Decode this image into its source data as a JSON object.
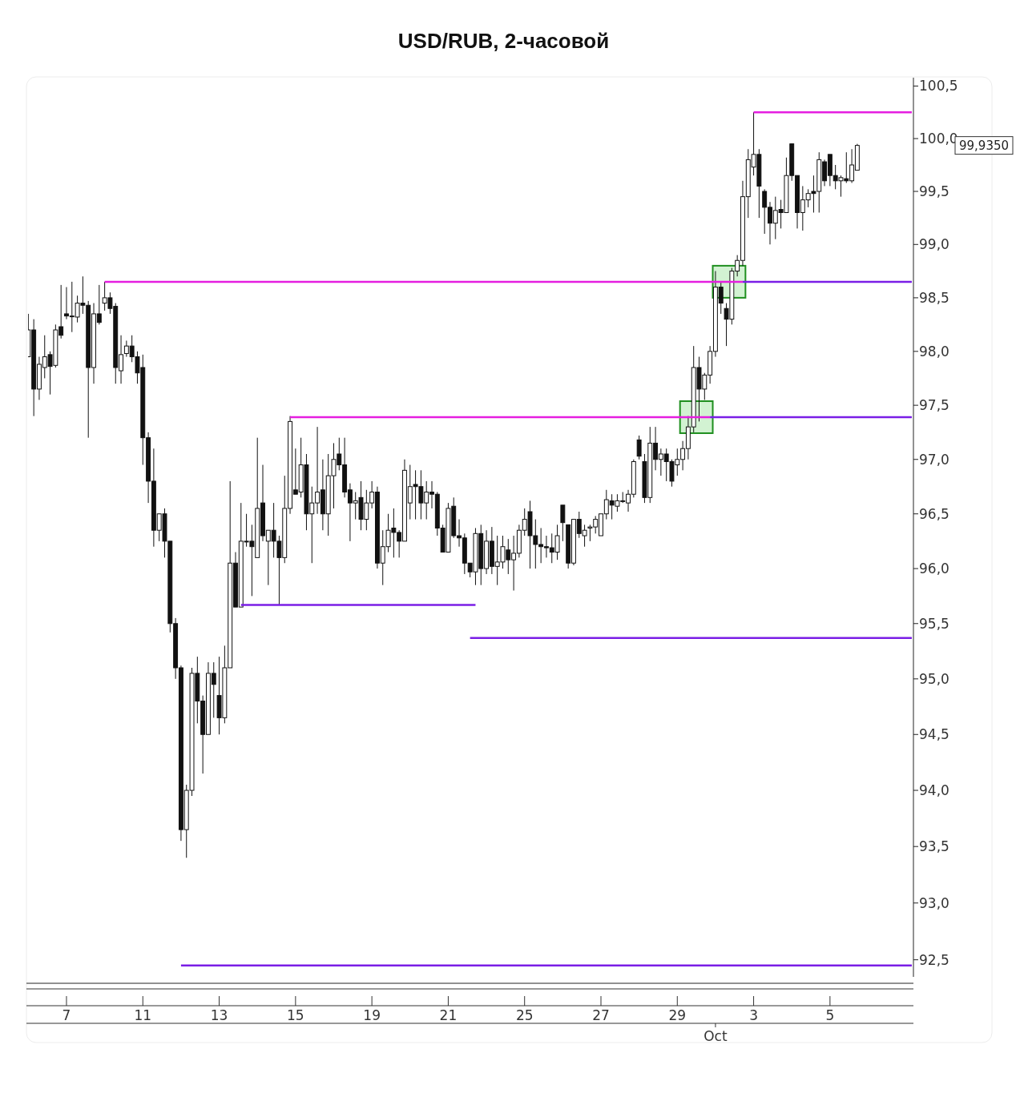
{
  "chart_data": {
    "type": "candlestick",
    "title": "USD/RUB, 2-часовой",
    "categories": [
      null,
      null,
      null,
      null,
      null,
      null,
      null,
      "7",
      null,
      null,
      null,
      null,
      null,
      null,
      null,
      null,
      null,
      null,
      null,
      null,
      null,
      "11",
      null,
      null,
      null,
      null,
      null,
      null,
      null,
      null,
      null,
      null,
      null,
      null,
      null,
      "13",
      null,
      null,
      null,
      null,
      null,
      null,
      null,
      null,
      null,
      null,
      null,
      null,
      null,
      "15",
      null,
      null,
      null,
      null,
      null,
      null,
      null,
      null,
      null,
      null,
      null,
      null,
      null,
      "19",
      null,
      null,
      null,
      null,
      null,
      null,
      null,
      null,
      null,
      null,
      null,
      null,
      null,
      "21",
      null,
      null,
      null,
      null,
      null,
      null,
      null,
      null,
      null,
      null,
      null,
      null,
      null,
      "25",
      null,
      null,
      null,
      null,
      null,
      null,
      null,
      null,
      null,
      null,
      null,
      null,
      null,
      "27",
      null,
      null,
      null,
      null,
      null,
      null,
      null,
      null,
      null,
      null,
      null,
      null,
      null,
      "29",
      null,
      null,
      null,
      null,
      null,
      null,
      null,
      null,
      null,
      null,
      null,
      null,
      null,
      "3",
      null,
      null,
      null,
      null,
      null,
      null,
      null,
      null,
      null,
      null,
      null,
      null,
      null,
      "5",
      null,
      null,
      null,
      null,
      null,
      null,
      null,
      null,
      null,
      null,
      null,
      null,
      null,
      null,
      null
    ],
    "ohlc": [
      [
        97.95,
        98.35,
        97.95,
        98.2
      ],
      [
        98.2,
        98.3,
        97.4,
        97.65
      ],
      [
        97.65,
        97.95,
        97.55,
        97.88
      ],
      [
        97.85,
        98.15,
        97.75,
        97.95
      ],
      [
        97.97,
        98.0,
        97.6,
        97.86
      ],
      [
        97.87,
        98.25,
        97.85,
        98.2
      ],
      [
        98.23,
        98.62,
        98.12,
        98.15
      ],
      [
        98.35,
        98.6,
        98.3,
        98.33
      ],
      [
        98.33,
        98.65,
        98.18,
        98.33
      ],
      [
        98.32,
        98.52,
        98.27,
        98.45
      ],
      [
        98.45,
        98.7,
        98.35,
        98.43
      ],
      [
        98.43,
        98.47,
        97.2,
        97.85
      ],
      [
        97.85,
        98.45,
        97.7,
        98.35
      ],
      [
        98.35,
        98.62,
        98.25,
        98.27
      ],
      [
        98.45,
        98.65,
        98.38,
        98.5
      ],
      [
        98.5,
        98.55,
        98.35,
        98.4
      ],
      [
        98.42,
        98.45,
        97.7,
        97.85
      ],
      [
        97.82,
        98.15,
        97.7,
        97.97
      ],
      [
        97.98,
        98.1,
        97.95,
        98.05
      ],
      [
        98.05,
        98.15,
        97.9,
        97.95
      ],
      [
        97.95,
        98.0,
        97.7,
        97.8
      ],
      [
        97.85,
        97.97,
        96.95,
        97.2
      ],
      [
        97.2,
        97.25,
        96.6,
        96.8
      ],
      [
        96.8,
        97.1,
        96.2,
        96.35
      ],
      [
        96.35,
        96.5,
        96.25,
        96.5
      ],
      [
        96.5,
        96.55,
        96.1,
        96.25
      ],
      [
        96.25,
        96.25,
        95.42,
        95.5
      ],
      [
        95.5,
        95.55,
        95.0,
        95.1
      ],
      [
        95.1,
        95.12,
        93.55,
        93.65
      ],
      [
        93.65,
        94.05,
        93.4,
        94.0
      ],
      [
        94.0,
        95.1,
        93.95,
        95.05
      ],
      [
        95.05,
        95.2,
        94.6,
        94.8
      ],
      [
        94.8,
        94.85,
        94.15,
        94.5
      ],
      [
        94.5,
        95.15,
        94.5,
        95.05
      ],
      [
        95.05,
        95.15,
        94.65,
        94.95
      ],
      [
        94.85,
        95.2,
        94.5,
        94.65
      ],
      [
        94.65,
        95.3,
        94.6,
        95.1
      ],
      [
        95.1,
        96.8,
        95.1,
        96.05
      ],
      [
        96.05,
        96.15,
        95.65,
        95.65
      ],
      [
        95.65,
        96.6,
        95.65,
        96.25
      ],
      [
        96.25,
        96.5,
        96.2,
        96.25
      ],
      [
        96.25,
        96.4,
        95.75,
        96.2
      ],
      [
        96.1,
        97.2,
        96.1,
        96.55
      ],
      [
        96.6,
        96.95,
        96.25,
        96.3
      ],
      [
        96.25,
        96.35,
        95.85,
        96.35
      ],
      [
        96.35,
        96.6,
        96.1,
        96.25
      ],
      [
        96.25,
        96.3,
        95.67,
        96.1
      ],
      [
        96.1,
        96.85,
        96.05,
        96.55
      ],
      [
        96.55,
        97.4,
        96.5,
        97.35
      ],
      [
        96.72,
        97.1,
        96.68,
        96.68
      ],
      [
        96.7,
        97.2,
        96.65,
        96.95
      ],
      [
        96.95,
        97.05,
        96.35,
        96.5
      ],
      [
        96.5,
        96.75,
        96.05,
        96.6
      ],
      [
        96.6,
        97.3,
        96.5,
        96.7
      ],
      [
        96.72,
        97.0,
        96.35,
        96.5
      ],
      [
        96.5,
        97.05,
        96.3,
        96.85
      ],
      [
        96.85,
        97.15,
        96.55,
        97.0
      ],
      [
        97.05,
        97.2,
        96.9,
        96.95
      ],
      [
        96.95,
        97.2,
        96.65,
        96.7
      ],
      [
        96.72,
        96.78,
        96.25,
        96.6
      ],
      [
        96.6,
        96.7,
        96.45,
        96.62
      ],
      [
        96.65,
        96.8,
        96.35,
        96.45
      ],
      [
        96.45,
        96.72,
        96.35,
        96.6
      ],
      [
        96.6,
        96.8,
        96.55,
        96.7
      ],
      [
        96.7,
        96.75,
        96.0,
        96.05
      ],
      [
        96.05,
        96.35,
        95.85,
        96.2
      ],
      [
        96.2,
        96.5,
        96.15,
        96.35
      ],
      [
        96.37,
        96.55,
        96.1,
        96.33
      ],
      [
        96.33,
        96.35,
        96.1,
        96.25
      ],
      [
        96.25,
        97.0,
        96.25,
        96.9
      ],
      [
        96.6,
        96.95,
        96.45,
        96.75
      ],
      [
        96.77,
        96.9,
        96.45,
        96.75
      ],
      [
        96.75,
        96.9,
        96.45,
        96.6
      ],
      [
        96.6,
        96.8,
        96.45,
        96.7
      ],
      [
        96.7,
        96.8,
        96.55,
        96.68
      ],
      [
        96.68,
        96.7,
        96.3,
        96.37
      ],
      [
        96.37,
        96.4,
        96.15,
        96.15
      ],
      [
        96.15,
        96.6,
        96.15,
        96.55
      ],
      [
        96.57,
        96.65,
        96.28,
        96.3
      ],
      [
        96.3,
        96.45,
        96.2,
        96.28
      ],
      [
        96.28,
        96.32,
        95.95,
        96.05
      ],
      [
        96.05,
        96.05,
        95.92,
        95.97
      ],
      [
        95.97,
        96.37,
        95.85,
        96.32
      ],
      [
        96.32,
        96.4,
        95.85,
        96.0
      ],
      [
        96.0,
        96.35,
        95.95,
        96.25
      ],
      [
        96.25,
        96.38,
        95.95,
        96.02
      ],
      [
        96.02,
        96.3,
        95.85,
        96.06
      ],
      [
        96.06,
        96.3,
        96.0,
        96.2
      ],
      [
        96.17,
        96.27,
        95.95,
        96.08
      ],
      [
        96.08,
        96.3,
        95.8,
        96.14
      ],
      [
        96.14,
        96.4,
        96.1,
        96.35
      ],
      [
        96.35,
        96.55,
        96.3,
        96.45
      ],
      [
        96.52,
        96.62,
        96.0,
        96.3
      ],
      [
        96.3,
        96.45,
        96.0,
        96.22
      ],
      [
        96.22,
        96.37,
        96.05,
        96.2
      ],
      [
        96.2,
        96.3,
        96.1,
        96.19
      ],
      [
        96.19,
        96.32,
        96.05,
        96.15
      ],
      [
        96.15,
        96.4,
        96.08,
        96.3
      ],
      [
        96.58,
        96.58,
        96.25,
        96.42
      ],
      [
        96.4,
        96.4,
        96.0,
        96.05
      ],
      [
        96.05,
        96.45,
        96.03,
        96.45
      ],
      [
        96.45,
        96.52,
        96.28,
        96.32
      ],
      [
        96.3,
        96.4,
        96.2,
        96.35
      ],
      [
        96.37,
        96.4,
        96.25,
        96.38
      ],
      [
        96.38,
        96.48,
        96.32,
        96.45
      ],
      [
        96.3,
        96.5,
        96.3,
        96.5
      ],
      [
        96.5,
        96.72,
        96.45,
        96.63
      ],
      [
        96.62,
        96.68,
        96.45,
        96.58
      ],
      [
        96.57,
        96.68,
        96.52,
        96.62
      ],
      [
        96.62,
        96.7,
        96.6,
        96.62
      ],
      [
        96.6,
        96.72,
        96.52,
        96.68
      ],
      [
        96.68,
        97.0,
        96.65,
        96.98
      ],
      [
        97.18,
        97.22,
        97.0,
        97.03
      ],
      [
        96.98,
        97.05,
        96.6,
        96.65
      ],
      [
        96.65,
        97.3,
        96.6,
        97.15
      ],
      [
        97.15,
        97.3,
        96.9,
        97.0
      ],
      [
        97.0,
        97.1,
        96.85,
        97.05
      ],
      [
        97.05,
        97.1,
        96.8,
        96.98
      ],
      [
        96.98,
        97.0,
        96.75,
        96.8
      ],
      [
        96.95,
        97.1,
        96.85,
        97.0
      ],
      [
        97.0,
        97.17,
        96.9,
        97.1
      ],
      [
        97.1,
        97.4,
        97.0,
        97.3
      ],
      [
        97.3,
        98.05,
        97.25,
        97.85
      ],
      [
        97.85,
        97.95,
        97.35,
        97.65
      ],
      [
        97.65,
        97.8,
        97.55,
        97.78
      ],
      [
        97.78,
        98.05,
        97.7,
        98.0
      ],
      [
        98.0,
        98.75,
        97.95,
        98.6
      ],
      [
        98.6,
        98.65,
        98.35,
        98.45
      ],
      [
        98.4,
        98.45,
        98.05,
        98.3
      ],
      [
        98.3,
        98.78,
        98.25,
        98.75
      ],
      [
        98.75,
        98.9,
        98.7,
        98.85
      ],
      [
        98.85,
        99.6,
        98.8,
        99.45
      ],
      [
        99.45,
        99.9,
        99.25,
        99.8
      ],
      [
        99.73,
        100.25,
        99.65,
        99.85
      ],
      [
        99.85,
        99.9,
        99.25,
        99.55
      ],
      [
        99.5,
        99.52,
        99.1,
        99.35
      ],
      [
        99.35,
        99.4,
        99.0,
        99.2
      ],
      [
        99.2,
        99.45,
        99.05,
        99.32
      ],
      [
        99.33,
        99.42,
        99.15,
        99.3
      ],
      [
        99.3,
        99.82,
        99.3,
        99.65
      ],
      [
        99.95,
        99.95,
        99.6,
        99.65
      ],
      [
        99.65,
        99.65,
        99.15,
        99.3
      ],
      [
        99.3,
        99.55,
        99.13,
        99.42
      ],
      [
        99.42,
        99.52,
        99.35,
        99.48
      ],
      [
        99.5,
        99.65,
        99.3,
        99.48
      ],
      [
        99.5,
        99.87,
        99.3,
        99.8
      ],
      [
        99.78,
        99.8,
        99.55,
        99.6
      ],
      [
        99.85,
        99.85,
        99.55,
        99.65
      ],
      [
        99.65,
        99.75,
        99.52,
        99.6
      ],
      [
        99.6,
        99.65,
        99.45,
        99.63
      ],
      [
        99.62,
        99.87,
        99.58,
        99.6
      ],
      [
        99.6,
        99.9,
        99.58,
        99.75
      ],
      [
        99.7,
        99.95,
        99.7,
        99.935
      ],
      null,
      null,
      null,
      null,
      null,
      null,
      null,
      null,
      null,
      null
    ],
    "series": [
      {
        "type": "line",
        "color": "#e51ee0",
        "values": [
          null,
          null,
          null,
          null,
          null,
          null,
          null,
          null,
          null,
          null,
          null,
          null,
          null,
          null,
          null,
          null,
          null,
          null,
          null,
          null,
          null,
          null,
          null,
          null,
          null,
          null,
          null,
          null,
          null,
          null,
          null,
          null,
          null,
          null,
          null,
          null,
          null,
          null,
          null,
          null,
          null,
          null,
          null,
          null,
          null,
          null,
          null,
          null,
          null,
          null,
          null,
          null,
          null,
          null,
          null,
          null,
          null,
          null,
          null,
          null,
          null,
          null,
          null,
          null,
          null,
          null,
          null,
          null,
          null,
          null,
          null,
          null,
          null,
          null,
          null,
          null,
          null,
          null,
          null,
          null,
          null,
          null,
          null,
          null,
          null,
          null,
          null,
          null,
          null,
          null,
          null,
          null,
          null,
          null,
          null,
          null,
          null,
          null,
          null,
          null,
          null,
          null,
          null,
          null,
          null,
          null,
          null,
          null,
          null,
          null,
          null,
          null,
          null,
          null,
          null,
          null,
          null,
          null,
          null,
          null,
          null,
          null,
          null,
          null,
          null,
          null,
          null,
          null,
          null,
          null,
          null,
          null,
          null,
          100.25,
          100.25,
          100.25,
          100.25,
          100.25,
          100.25,
          100.25,
          100.25,
          100.25,
          100.25,
          100.25,
          100.25,
          100.25,
          100.25,
          100.25,
          100.25,
          100.25,
          100.25,
          100.25,
          100.25,
          100.25,
          100.25,
          100.25,
          100.25,
          100.25,
          100.25,
          100.25,
          100.25,
          100.25,
          100.25
        ]
      },
      {
        "type": "line",
        "color": "#e51ee0",
        "values": [
          null,
          null,
          null,
          null,
          null,
          null,
          null,
          null,
          null,
          null,
          null,
          null,
          null,
          null,
          98.65,
          98.65,
          98.65,
          98.65,
          98.65,
          98.65,
          98.65,
          98.65,
          98.65,
          98.65,
          98.65,
          98.65,
          98.65,
          98.65,
          98.65,
          98.65,
          98.65,
          98.65,
          98.65,
          98.65,
          98.65,
          98.65,
          98.65,
          98.65,
          98.65,
          98.65,
          98.65,
          98.65,
          98.65,
          98.65,
          98.65,
          98.65,
          98.65,
          98.65,
          98.65,
          98.65,
          98.65,
          98.65,
          98.65,
          98.65,
          98.65,
          98.65,
          98.65,
          98.65,
          98.65,
          98.65,
          98.65,
          98.65,
          98.65,
          98.65,
          98.65,
          98.65,
          98.65,
          98.65,
          98.65,
          98.65,
          98.65,
          98.65,
          98.65,
          98.65,
          98.65,
          98.65,
          98.65,
          98.65,
          98.65,
          98.65,
          98.65,
          98.65,
          98.65,
          98.65,
          98.65,
          98.65,
          98.65,
          98.65,
          98.65,
          98.65,
          98.65,
          98.65,
          98.65,
          98.65,
          98.65,
          98.65,
          98.65,
          98.65,
          98.65,
          98.65,
          98.65,
          98.65,
          98.65,
          98.65,
          98.65,
          98.65,
          98.65,
          98.65,
          98.65,
          98.65,
          98.65,
          98.65,
          98.65,
          98.65,
          98.65,
          98.65,
          98.65,
          98.65,
          98.65,
          98.65,
          98.65,
          98.65,
          98.65,
          98.65,
          98.65,
          98.65,
          98.65,
          98.65,
          98.65,
          98.65,
          98.65,
          98.65,
          null,
          null,
          null,
          null,
          null,
          null,
          null,
          null,
          null,
          null,
          null,
          null,
          null,
          null,
          null,
          null,
          null,
          null,
          null,
          null,
          null,
          null,
          null,
          null,
          null,
          null,
          null,
          null,
          null,
          null,
          null
        ]
      },
      {
        "type": "line",
        "color": "#7a1ee6",
        "values": [
          null,
          null,
          null,
          null,
          null,
          null,
          null,
          null,
          null,
          null,
          null,
          null,
          null,
          null,
          null,
          null,
          null,
          null,
          null,
          null,
          null,
          null,
          null,
          null,
          null,
          null,
          null,
          null,
          null,
          null,
          null,
          null,
          null,
          null,
          null,
          null,
          null,
          null,
          null,
          null,
          null,
          null,
          null,
          null,
          null,
          null,
          null,
          null,
          null,
          null,
          null,
          null,
          null,
          null,
          null,
          null,
          null,
          null,
          null,
          null,
          null,
          null,
          null,
          null,
          null,
          null,
          null,
          null,
          null,
          null,
          null,
          null,
          null,
          null,
          null,
          null,
          null,
          null,
          null,
          null,
          null,
          null,
          null,
          null,
          null,
          null,
          null,
          null,
          null,
          null,
          null,
          null,
          null,
          null,
          null,
          null,
          null,
          null,
          null,
          null,
          null,
          null,
          null,
          null,
          null,
          null,
          null,
          null,
          null,
          null,
          null,
          null,
          null,
          null,
          null,
          null,
          null,
          null,
          null,
          null,
          null,
          null,
          null,
          null,
          null,
          null,
          null,
          null,
          null,
          null,
          null,
          98.65,
          98.65,
          98.65,
          98.65,
          98.65,
          98.65,
          98.65,
          98.65,
          98.65,
          98.65,
          98.65,
          98.65,
          98.65,
          98.65,
          98.65,
          98.65,
          98.65,
          98.65,
          98.65,
          98.65,
          98.65,
          98.65,
          98.65,
          98.65,
          98.65,
          98.65,
          98.65,
          98.65,
          98.65,
          98.65,
          98.65,
          98.65
        ]
      },
      {
        "type": "line",
        "color": "#e51ee0",
        "values": [
          null,
          null,
          null,
          null,
          null,
          null,
          null,
          null,
          null,
          null,
          null,
          null,
          null,
          null,
          null,
          null,
          null,
          null,
          null,
          null,
          null,
          null,
          null,
          null,
          null,
          null,
          null,
          null,
          null,
          null,
          null,
          null,
          null,
          null,
          null,
          null,
          null,
          null,
          null,
          null,
          null,
          null,
          null,
          null,
          null,
          null,
          null,
          null,
          97.39,
          97.39,
          97.39,
          97.39,
          97.39,
          97.39,
          97.39,
          97.39,
          97.39,
          97.39,
          97.39,
          97.39,
          97.39,
          97.39,
          97.39,
          97.39,
          97.39,
          97.39,
          97.39,
          97.39,
          97.39,
          97.39,
          97.39,
          97.39,
          97.39,
          97.39,
          97.39,
          97.39,
          97.39,
          97.39,
          97.39,
          97.39,
          97.39,
          97.39,
          97.39,
          97.39,
          97.39,
          97.39,
          97.39,
          97.39,
          97.39,
          97.39,
          97.39,
          97.39,
          97.39,
          97.39,
          97.39,
          97.39,
          97.39,
          97.39,
          97.39,
          97.39,
          97.39,
          97.39,
          97.39,
          97.39,
          97.39,
          97.39,
          97.39,
          97.39,
          97.39,
          97.39,
          97.39,
          97.39,
          97.39,
          97.39,
          97.39,
          97.39,
          97.39,
          97.39,
          97.39,
          97.39,
          97.39,
          97.39,
          97.39,
          97.39,
          97.39,
          97.39,
          null,
          null,
          null,
          null,
          null,
          null,
          null,
          null,
          null,
          null,
          null,
          null,
          null,
          null,
          null,
          null,
          null,
          null,
          null,
          null,
          null,
          null,
          null,
          null,
          null,
          null,
          null,
          null,
          null,
          null,
          null,
          null,
          null,
          null,
          null,
          null,
          null
        ]
      },
      {
        "type": "line",
        "color": "#7a1ee6",
        "values": [
          null,
          null,
          null,
          null,
          null,
          null,
          null,
          null,
          null,
          null,
          null,
          null,
          null,
          null,
          null,
          null,
          null,
          null,
          null,
          null,
          null,
          null,
          null,
          null,
          null,
          null,
          null,
          null,
          null,
          null,
          null,
          null,
          null,
          null,
          null,
          null,
          null,
          null,
          null,
          null,
          null,
          null,
          null,
          null,
          null,
          null,
          null,
          null,
          null,
          null,
          null,
          null,
          null,
          null,
          null,
          null,
          null,
          null,
          null,
          null,
          null,
          null,
          null,
          null,
          null,
          null,
          null,
          null,
          null,
          null,
          null,
          null,
          null,
          null,
          null,
          null,
          null,
          null,
          null,
          null,
          null,
          null,
          null,
          null,
          null,
          null,
          null,
          null,
          null,
          null,
          null,
          null,
          null,
          null,
          null,
          null,
          null,
          null,
          null,
          null,
          null,
          null,
          null,
          null,
          null,
          null,
          null,
          null,
          null,
          null,
          null,
          null,
          null,
          null,
          null,
          null,
          null,
          null,
          null,
          null,
          null,
          null,
          null,
          null,
          null,
          97.39,
          97.39,
          97.39,
          97.39,
          97.39,
          97.39,
          97.39,
          97.39,
          97.39,
          97.39,
          97.39,
          97.39,
          97.39,
          97.39,
          97.39,
          97.39,
          97.39,
          97.39,
          97.39,
          97.39,
          97.39,
          97.39,
          97.39,
          97.39,
          97.39,
          97.39,
          97.39,
          97.39,
          97.39,
          97.39,
          97.39,
          97.39,
          97.39,
          97.39,
          97.39,
          97.39,
          97.39,
          97.39
        ]
      },
      {
        "type": "line",
        "color": "#7a1ee6",
        "values": [
          null,
          null,
          null,
          null,
          null,
          null,
          null,
          null,
          null,
          null,
          null,
          null,
          null,
          null,
          null,
          null,
          null,
          null,
          null,
          null,
          null,
          null,
          null,
          null,
          null,
          null,
          null,
          null,
          null,
          null,
          null,
          null,
          null,
          null,
          null,
          null,
          null,
          null,
          null,
          95.67,
          95.67,
          95.67,
          95.67,
          95.67,
          95.67,
          95.67,
          95.67,
          95.67,
          95.67,
          95.67,
          95.67,
          95.67,
          95.67,
          95.67,
          95.67,
          95.67,
          95.67,
          95.67,
          95.67,
          95.67,
          95.67,
          95.67,
          95.67,
          95.67,
          95.67,
          95.67,
          95.67,
          95.67,
          95.67,
          95.67,
          95.67,
          95.67,
          95.67,
          95.67,
          95.67,
          95.67,
          95.67,
          95.67,
          95.67,
          95.67,
          95.67,
          95.67,
          95.67,
          null,
          null,
          null,
          null,
          null,
          null,
          null,
          null,
          null,
          null,
          null,
          null,
          null,
          null,
          null,
          null,
          null,
          null,
          null,
          null,
          null,
          null,
          null,
          null,
          null,
          null,
          null,
          null,
          null,
          null,
          null,
          null,
          null,
          null,
          null,
          null,
          null,
          null,
          null,
          null,
          null,
          null,
          null,
          null,
          null,
          null,
          null,
          null,
          null,
          null,
          null,
          null,
          null,
          null,
          null,
          null,
          null,
          null,
          null,
          null,
          null,
          null,
          null,
          null,
          null,
          null,
          null,
          null,
          null,
          null,
          null,
          null,
          null,
          null,
          null,
          null,
          null,
          null,
          null,
          null
        ]
      },
      {
        "type": "line",
        "color": "#7a1ee6",
        "values": [
          null,
          null,
          null,
          null,
          null,
          null,
          null,
          null,
          null,
          null,
          null,
          null,
          null,
          null,
          null,
          null,
          null,
          null,
          null,
          null,
          null,
          null,
          null,
          null,
          null,
          null,
          null,
          null,
          null,
          null,
          null,
          null,
          null,
          null,
          null,
          null,
          null,
          null,
          null,
          null,
          null,
          null,
          null,
          null,
          null,
          null,
          null,
          null,
          null,
          null,
          null,
          null,
          null,
          null,
          null,
          null,
          null,
          null,
          null,
          null,
          null,
          null,
          null,
          null,
          null,
          null,
          null,
          null,
          null,
          null,
          null,
          null,
          null,
          null,
          null,
          null,
          null,
          null,
          null,
          null,
          null,
          95.37,
          95.37,
          95.37,
          95.37,
          95.37,
          95.37,
          95.37,
          95.37,
          95.37,
          95.37,
          95.37,
          95.37,
          95.37,
          95.37,
          95.37,
          95.37,
          95.37,
          95.37,
          95.37,
          95.37,
          95.37,
          95.37,
          95.37,
          95.37,
          95.37,
          95.37,
          95.37,
          95.37,
          95.37,
          95.37,
          95.37,
          95.37,
          95.37,
          95.37,
          95.37,
          95.37,
          95.37,
          95.37,
          95.37,
          95.37,
          95.37,
          95.37,
          95.37,
          95.37,
          95.37,
          95.37,
          95.37,
          95.37,
          95.37,
          95.37,
          95.37,
          95.37,
          95.37,
          95.37,
          95.37,
          95.37,
          95.37,
          95.37,
          95.37,
          95.37,
          95.37,
          95.37,
          95.37,
          95.37,
          95.37,
          95.37,
          95.37,
          95.37,
          95.37,
          95.37,
          95.37,
          95.37,
          95.37,
          95.37,
          95.37,
          95.37,
          95.37,
          95.37,
          95.37,
          95.37,
          95.37,
          95.37
        ]
      },
      {
        "type": "line",
        "color": "#7a1ee6",
        "values": [
          null,
          null,
          null,
          null,
          null,
          null,
          null,
          null,
          null,
          null,
          null,
          null,
          null,
          null,
          null,
          null,
          null,
          null,
          null,
          null,
          null,
          null,
          null,
          null,
          null,
          null,
          null,
          null,
          92.45,
          92.45,
          92.45,
          92.45,
          92.45,
          92.45,
          92.45,
          92.45,
          92.45,
          92.45,
          92.45,
          92.45,
          92.45,
          92.45,
          92.45,
          92.45,
          92.45,
          92.45,
          92.45,
          92.45,
          92.45,
          92.45,
          92.45,
          92.45,
          92.45,
          92.45,
          92.45,
          92.45,
          92.45,
          92.45,
          92.45,
          92.45,
          92.45,
          92.45,
          92.45,
          92.45,
          92.45,
          92.45,
          92.45,
          92.45,
          92.45,
          92.45,
          92.45,
          92.45,
          92.45,
          92.45,
          92.45,
          92.45,
          92.45,
          92.45,
          92.45,
          92.45,
          92.45,
          92.45,
          92.45,
          92.45,
          92.45,
          92.45,
          92.45,
          92.45,
          92.45,
          92.45,
          92.45,
          92.45,
          92.45,
          92.45,
          92.45,
          92.45,
          92.45,
          92.45,
          92.45,
          92.45,
          92.45,
          92.45,
          92.45,
          92.45,
          92.45,
          92.45,
          92.45,
          92.45,
          92.45,
          92.45,
          92.45,
          92.45,
          92.45,
          92.45,
          92.45,
          92.45,
          92.45,
          92.45,
          92.45,
          92.45,
          92.45,
          92.45,
          92.45,
          92.45,
          92.45,
          92.45,
          92.45,
          92.45,
          92.45,
          92.45,
          92.45,
          92.45,
          92.45,
          92.45,
          92.45,
          92.45,
          92.45,
          92.45,
          92.45,
          92.45,
          92.45,
          92.45,
          92.45,
          92.45,
          92.45,
          92.45,
          92.45,
          92.45,
          92.45,
          92.45,
          92.45,
          92.45,
          92.45,
          92.45,
          92.45,
          92.45,
          92.45,
          92.45,
          92.45,
          92.45,
          92.45,
          92.45,
          92.45
        ]
      }
    ],
    "ylim": [
      92.35,
      100.58
    ],
    "log": "y",
    "yticks": [
      {
        "value": 92.5,
        "label": "92,5"
      },
      {
        "value": 93,
        "label": "93,0"
      },
      {
        "value": 93.5,
        "label": "93,5"
      },
      {
        "value": 94,
        "label": "94,0"
      },
      {
        "value": 94.5,
        "label": "94,5"
      },
      {
        "value": 95,
        "label": "95,0"
      },
      {
        "value": 95.5,
        "label": "95,5"
      },
      {
        "value": 96,
        "label": "96,0"
      },
      {
        "value": 96.5,
        "label": "96,5"
      },
      {
        "value": 97,
        "label": "97,0"
      },
      {
        "value": 97.5,
        "label": "97,5"
      },
      {
        "value": 98,
        "label": "98,0"
      },
      {
        "value": 98.5,
        "label": "98,5"
      },
      {
        "value": 99,
        "label": "99,0"
      },
      {
        "value": 99.5,
        "label": "99,5"
      },
      {
        "value": 100,
        "label": "100,0"
      },
      {
        "value": 100.5,
        "label": "100,5"
      }
    ],
    "annotations": [
      "99,9350",
      "Oct"
    ]
  }
}
